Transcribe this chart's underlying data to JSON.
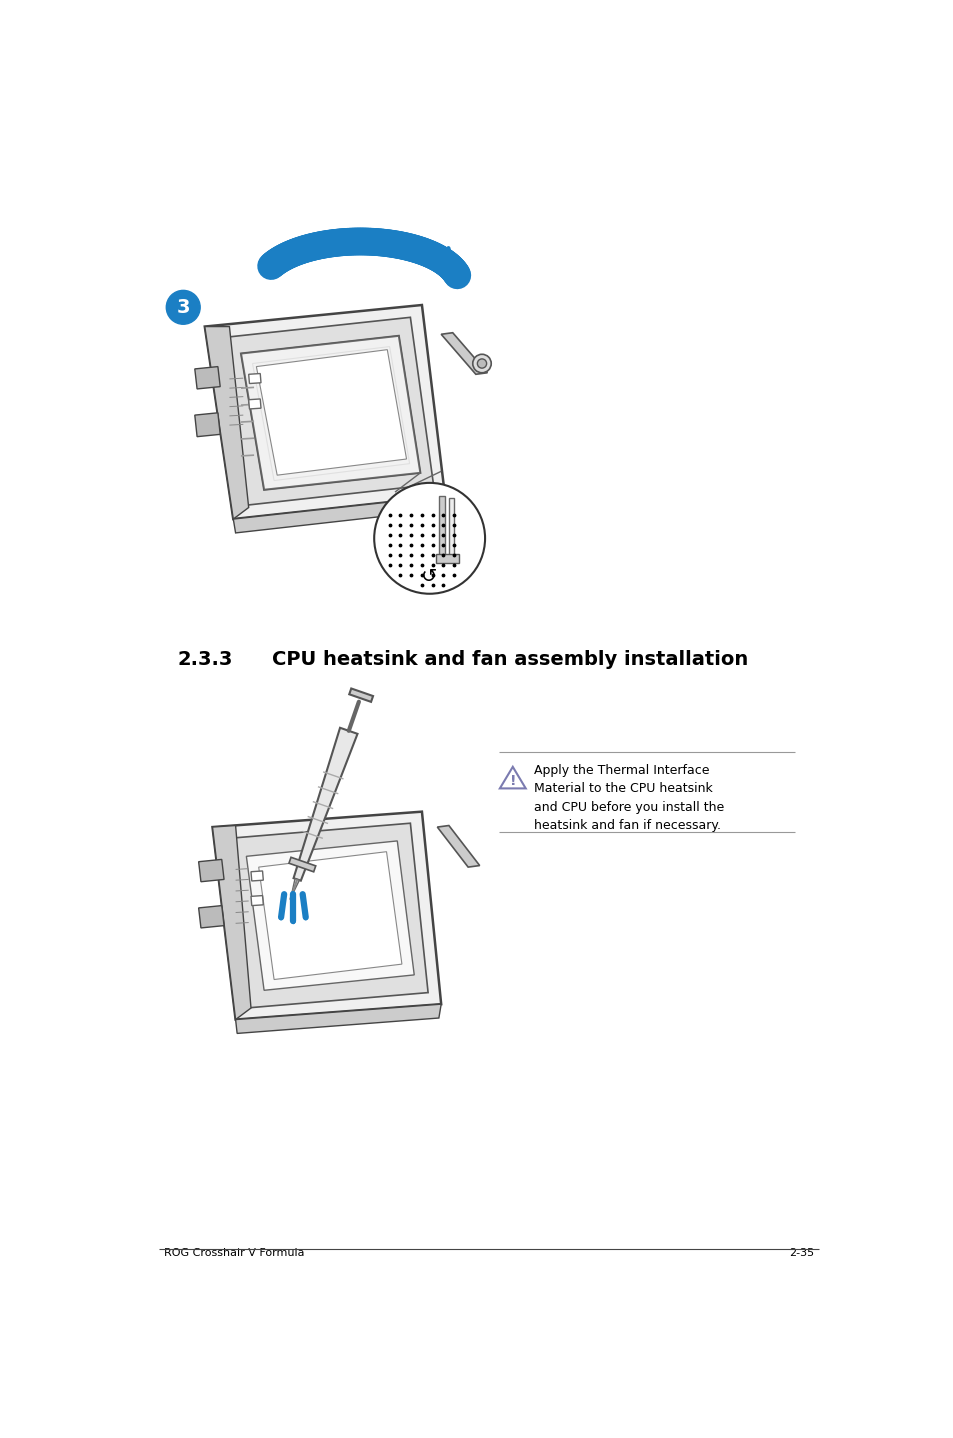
{
  "bg_color": "#ffffff",
  "page_width": 9.54,
  "page_height": 14.38,
  "title_section": "2.3.3",
  "title_text": "CPU heatsink and fan assembly installation",
  "title_fontsize": 14,
  "step_number": "3",
  "step_circle_color": "#1b7fc4",
  "footer_left": "ROG Crosshair V Formula",
  "footer_right": "2-35",
  "note_text": "Apply the Thermal Interface\nMaterial to the CPU heatsink\nand CPU before you install the\nheatsink and fan if necessary.",
  "blue_color": "#1b7fc4",
  "blue_dark": "#0e5c8a",
  "gray_light": "#e8e8e8",
  "gray_mid": "#aaaaaa",
  "gray_dark": "#555555",
  "warn_color": "#7b7bb0"
}
